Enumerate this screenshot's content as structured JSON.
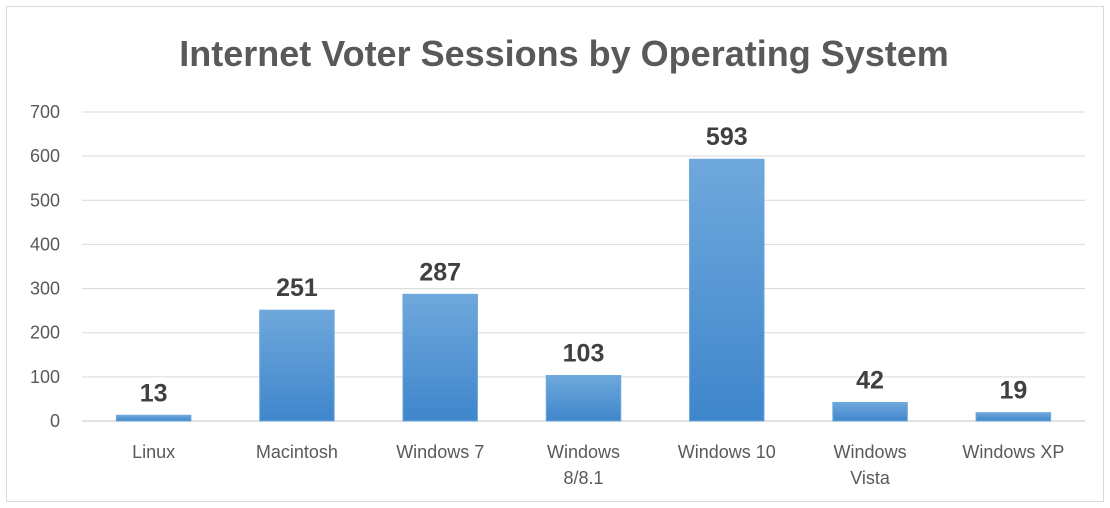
{
  "chart_data": {
    "type": "bar",
    "title": "Internet Voter Sessions by Operating System",
    "categories": [
      [
        "Linux"
      ],
      [
        "Macintosh"
      ],
      [
        "Windows 7"
      ],
      [
        "Windows",
        "8/8.1"
      ],
      [
        "Windows 10"
      ],
      [
        "Windows",
        "Vista"
      ],
      [
        "Windows XP"
      ]
    ],
    "values": [
      13,
      251,
      287,
      103,
      593,
      42,
      19
    ],
    "ylim": [
      0,
      700
    ],
    "yticks": [
      0,
      100,
      200,
      300,
      400,
      500,
      600,
      700
    ],
    "grid": true,
    "legend": "none",
    "colors": {
      "bar_top": "#6fa8dc",
      "bar_bottom": "#3f86cc",
      "grid": "#d9d9d9",
      "text": "#595959",
      "label": "#404040"
    }
  }
}
